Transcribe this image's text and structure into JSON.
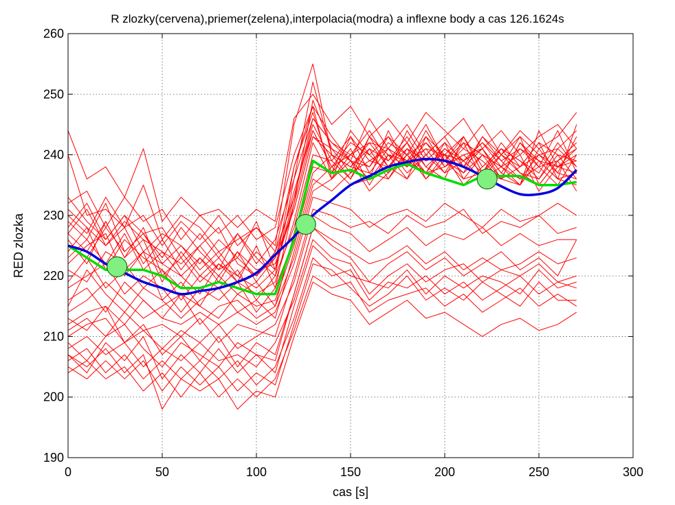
{
  "chart_data": {
    "type": "line",
    "title": "R zlozky(cervena),priemer(zelena),interpolacia(modra) a inflexne body a cas 126.1624s",
    "xlabel": "cas [s]",
    "ylabel": "RED zlozka",
    "xlim": [
      0,
      300
    ],
    "ylim": [
      190,
      260
    ],
    "xticks": [
      0,
      50,
      100,
      150,
      200,
      250,
      300
    ],
    "yticks": [
      190,
      200,
      210,
      220,
      230,
      240,
      250,
      260
    ],
    "grid": true,
    "colors": {
      "components": "#ff0000",
      "mean": "#00dd00",
      "interpolation": "#0000dd",
      "inflection_fill": "#80f080",
      "inflection_stroke": "#1a6e1a"
    },
    "x": [
      0,
      10,
      20,
      30,
      40,
      50,
      60,
      70,
      80,
      90,
      100,
      110,
      120,
      130,
      140,
      150,
      160,
      170,
      180,
      190,
      200,
      210,
      220,
      230,
      240,
      250,
      260,
      270
    ],
    "series": [
      {
        "values": [
          240,
          230,
          231,
          228,
          235,
          226,
          230,
          228,
          224,
          226,
          228,
          225,
          245,
          255,
          240,
          238,
          241,
          236,
          240,
          245,
          239,
          243,
          237,
          236,
          242,
          239,
          236,
          245
        ]
      },
      {
        "values": [
          233,
          229,
          226,
          230,
          224,
          227,
          225,
          222,
          226,
          223,
          229,
          221,
          238,
          248,
          236,
          243,
          239,
          241,
          237,
          240,
          243,
          238,
          241,
          237,
          235,
          244,
          238,
          241
        ]
      },
      {
        "values": [
          229,
          226,
          232,
          224,
          227,
          223,
          228,
          224,
          221,
          227,
          223,
          220,
          236,
          252,
          240,
          236,
          243,
          238,
          242,
          236,
          240,
          237,
          243,
          239,
          236,
          238,
          244,
          237
        ]
      },
      {
        "values": [
          227,
          231,
          225,
          228,
          222,
          226,
          221,
          225,
          228,
          222,
          220,
          224,
          233,
          246,
          242,
          239,
          236,
          244,
          238,
          241,
          237,
          242,
          236,
          240,
          243,
          235,
          239,
          242
        ]
      },
      {
        "values": [
          226,
          222,
          229,
          223,
          226,
          219,
          224,
          220,
          223,
          219,
          225,
          218,
          232,
          244,
          238,
          242,
          240,
          237,
          244,
          239,
          242,
          236,
          240,
          238,
          235,
          241,
          237,
          236
        ]
      },
      {
        "values": [
          224,
          228,
          221,
          226,
          223,
          221,
          218,
          223,
          219,
          224,
          221,
          222,
          231,
          243,
          241,
          237,
          243,
          240,
          236,
          243,
          238,
          241,
          239,
          236,
          242,
          238,
          235,
          240
        ]
      },
      {
        "values": [
          222,
          225,
          227,
          220,
          224,
          222,
          220,
          217,
          222,
          219,
          217,
          219,
          229,
          242,
          236,
          240,
          238,
          242,
          240,
          237,
          241,
          239,
          242,
          238,
          236,
          240,
          238,
          239
        ]
      },
      {
        "values": [
          221,
          219,
          224,
          222,
          218,
          221,
          216,
          220,
          218,
          221,
          216,
          220,
          228,
          240,
          239,
          236,
          241,
          239,
          243,
          238,
          236,
          243,
          237,
          241,
          239,
          236,
          241,
          238
        ]
      },
      {
        "values": [
          219,
          223,
          218,
          221,
          224,
          216,
          219,
          215,
          220,
          217,
          219,
          215,
          227,
          238,
          237,
          241,
          235,
          240,
          238,
          242,
          239,
          237,
          240,
          236,
          238,
          242,
          236,
          237
        ]
      },
      {
        "values": [
          218,
          220,
          222,
          217,
          220,
          218,
          214,
          218,
          216,
          219,
          214,
          218,
          226,
          237,
          240,
          238,
          237,
          236,
          241,
          239,
          240,
          235,
          238,
          241,
          237,
          236,
          240,
          236
        ]
      },
      {
        "values": [
          216,
          218,
          214,
          219,
          216,
          213,
          217,
          215,
          213,
          217,
          215,
          216,
          225,
          236,
          234,
          237,
          239,
          238,
          236,
          240,
          237,
          239,
          236,
          238,
          240,
          234,
          238,
          237
        ]
      },
      {
        "values": [
          215,
          221,
          217,
          214,
          218,
          216,
          213,
          216,
          218,
          214,
          216,
          213,
          224,
          235,
          238,
          235,
          236,
          240,
          239,
          237,
          238,
          240,
          241,
          236,
          235,
          239,
          236,
          235
        ]
      },
      {
        "values": [
          214,
          216,
          219,
          216,
          213,
          215,
          217,
          212,
          215,
          216,
          213,
          215,
          223,
          234,
          236,
          239,
          234,
          237,
          240,
          236,
          239,
          236,
          237,
          240,
          237,
          235,
          239,
          234
        ]
      },
      {
        "values": [
          212,
          214,
          215,
          212,
          216,
          213,
          212,
          214,
          212,
          214,
          212,
          214,
          222,
          233,
          232,
          231,
          228,
          230,
          231,
          229,
          232,
          230,
          228,
          231,
          229,
          230,
          232,
          230
        ]
      },
      {
        "values": [
          211,
          213,
          210,
          214,
          211,
          212,
          210,
          213,
          209,
          212,
          211,
          210,
          220,
          231,
          230,
          228,
          229,
          227,
          230,
          228,
          229,
          231,
          227,
          229,
          228,
          230,
          227,
          228
        ]
      },
      {
        "values": [
          210,
          212,
          213,
          209,
          211,
          208,
          211,
          209,
          212,
          208,
          210,
          212,
          219,
          230,
          228,
          227,
          224,
          226,
          228,
          225,
          227,
          226,
          228,
          225,
          227,
          225,
          226,
          226
        ]
      },
      {
        "values": [
          209,
          206,
          210,
          212,
          208,
          205,
          209,
          207,
          205,
          209,
          207,
          206,
          217,
          228,
          225,
          223,
          219,
          222,
          224,
          221,
          223,
          220,
          222,
          224,
          221,
          223,
          220,
          226
        ]
      },
      {
        "values": [
          208,
          210,
          207,
          209,
          205,
          208,
          206,
          209,
          206,
          207,
          205,
          209,
          216,
          226,
          223,
          222,
          217,
          220,
          222,
          219,
          221,
          222,
          219,
          221,
          220,
          222,
          219,
          220
        ]
      },
      {
        "values": [
          207,
          204,
          209,
          206,
          210,
          203,
          207,
          204,
          208,
          204,
          207,
          204,
          215,
          225,
          222,
          220,
          219,
          218,
          221,
          217,
          220,
          218,
          220,
          219,
          217,
          221,
          218,
          219
        ]
      },
      {
        "values": [
          206,
          208,
          204,
          207,
          203,
          206,
          203,
          206,
          203,
          206,
          202,
          205,
          213,
          223,
          220,
          221,
          216,
          219,
          218,
          220,
          217,
          219,
          216,
          218,
          220,
          217,
          219,
          218
        ]
      },
      {
        "values": [
          205,
          203,
          206,
          203,
          206,
          201,
          205,
          202,
          205,
          201,
          204,
          202,
          212,
          222,
          221,
          218,
          215,
          217,
          220,
          216,
          218,
          216,
          219,
          217,
          215,
          219,
          216,
          216
        ]
      },
      {
        "values": [
          204,
          206,
          203,
          205,
          201,
          204,
          200,
          204,
          200,
          203,
          200,
          203,
          211,
          220,
          218,
          219,
          214,
          216,
          217,
          218,
          215,
          217,
          214,
          216,
          218,
          215,
          217,
          215
        ]
      },
      {
        "values": [
          207,
          205,
          208,
          204,
          207,
          198,
          203,
          201,
          203,
          198,
          201,
          200,
          210,
          219,
          217,
          216,
          212,
          214,
          216,
          213,
          214,
          212,
          210,
          212,
          213,
          211,
          212,
          214
        ]
      },
      {
        "values": [
          213,
          211,
          215,
          209,
          212,
          207,
          210,
          206,
          210,
          205,
          209,
          207,
          217,
          228,
          226,
          224,
          222,
          223,
          225,
          222,
          224,
          221,
          223,
          221,
          222,
          224,
          222,
          223
        ]
      },
      {
        "values": [
          244,
          236,
          238,
          233,
          241,
          229,
          233,
          230,
          231,
          228,
          231,
          229,
          246,
          250,
          245,
          248,
          243,
          246,
          242,
          247,
          244,
          241,
          245,
          240,
          244,
          241,
          243,
          247
        ]
      },
      {
        "values": [
          232,
          234,
          228,
          233,
          229,
          231,
          226,
          230,
          227,
          230,
          226,
          228,
          240,
          248,
          243,
          239,
          246,
          241,
          245,
          240,
          243,
          246,
          241,
          244,
          240,
          243,
          245,
          241
        ]
      },
      {
        "values": [
          230,
          227,
          233,
          228,
          230,
          225,
          229,
          226,
          230,
          225,
          228,
          224,
          238,
          247,
          237,
          244,
          240,
          243,
          238,
          244,
          239,
          242,
          240,
          238,
          243,
          240,
          237,
          243
        ]
      },
      {
        "values": [
          228,
          232,
          226,
          230,
          227,
          228,
          223,
          227,
          223,
          227,
          222,
          226,
          236,
          246,
          242,
          240,
          244,
          239,
          242,
          238,
          241,
          238,
          243,
          240,
          238,
          242,
          240,
          239
        ]
      },
      {
        "values": [
          225,
          223,
          228,
          224,
          227,
          222,
          225,
          221,
          224,
          220,
          224,
          221,
          233,
          245,
          239,
          243,
          237,
          241,
          239,
          243,
          240,
          243,
          238,
          241,
          239,
          237,
          242,
          238
        ]
      },
      {
        "values": [
          223,
          226,
          222,
          227,
          221,
          224,
          220,
          223,
          220,
          224,
          219,
          223,
          231,
          243,
          240,
          238,
          242,
          238,
          241,
          237,
          242,
          239,
          241,
          237,
          241,
          239,
          238,
          240
        ]
      },
      {
        "values": [
          227,
          224,
          229,
          223,
          228,
          220,
          223,
          219,
          222,
          220,
          218,
          221,
          232,
          249,
          241,
          239,
          238,
          243,
          240,
          242,
          238,
          240,
          237,
          242,
          238,
          240,
          241,
          244
        ]
      },
      {
        "values": [
          231,
          228,
          225,
          229,
          226,
          224,
          222,
          225,
          221,
          223,
          220,
          223,
          234,
          244,
          238,
          240,
          242,
          241,
          239,
          241,
          240,
          239,
          242,
          239,
          241,
          238,
          239,
          241
        ]
      }
    ],
    "mean": {
      "name": "priemer",
      "values": [
        225,
        223,
        221,
        221,
        221,
        220,
        218,
        218,
        219,
        218,
        217,
        217,
        226,
        239,
        237,
        237.5,
        236,
        237.5,
        238.5,
        237,
        236,
        235,
        236.5,
        236.5,
        236.5,
        235,
        235,
        235.5
      ]
    },
    "interpolation": {
      "name": "interpolacia",
      "x": [
        0,
        10,
        20,
        30,
        40,
        50,
        60,
        70,
        80,
        90,
        100,
        110,
        120,
        130,
        140,
        150,
        160,
        170,
        180,
        190,
        200,
        210,
        220,
        230,
        240,
        250,
        260,
        270
      ],
      "values": [
        225,
        224,
        222,
        220.5,
        219,
        218,
        217,
        217.5,
        218,
        219,
        220.5,
        223.5,
        226.5,
        230,
        232.5,
        235,
        236.5,
        238,
        238.8,
        239.3,
        239,
        238,
        236.5,
        234.8,
        233.5,
        233.5,
        234.5,
        237.5
      ]
    },
    "inflection_points": [
      {
        "x": 26,
        "y": 221.5
      },
      {
        "x": 126.1624,
        "y": 228.5
      },
      {
        "x": 222.5,
        "y": 236
      }
    ]
  }
}
